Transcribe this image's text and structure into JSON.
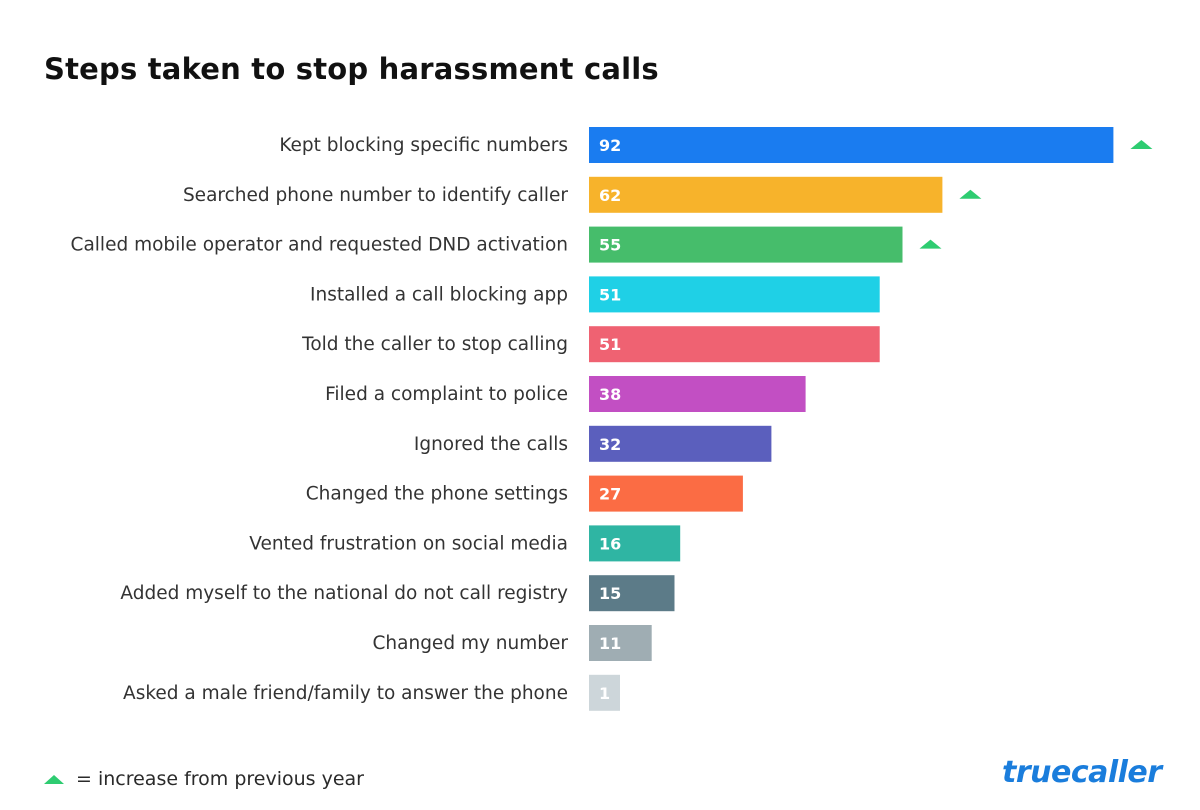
{
  "title": "Steps taken to stop harassment calls",
  "legend": {
    "text": "= increase from previous year",
    "marker_color": "#2ecc71"
  },
  "brand": "truecaller",
  "brand_color": "#1a7ddc",
  "chart_data": {
    "type": "bar",
    "orientation": "horizontal",
    "title": "Steps taken to stop harassment calls",
    "xlabel": "",
    "ylabel": "",
    "xlim": [
      0,
      100
    ],
    "grid": false,
    "categories": [
      "Kept blocking specific numbers",
      "Searched phone number to identify caller",
      "Called mobile operator and requested DND activation",
      "Installed a call blocking app",
      "Told the caller to stop calling",
      "Filed a complaint to police",
      "Ignored the calls",
      "Changed the phone settings",
      "Vented frustration on social media",
      "Added myself to the national do not call registry",
      "Changed my number",
      "Asked a male friend/family to answer the phone"
    ],
    "values": [
      92,
      62,
      55,
      51,
      51,
      38,
      32,
      27,
      16,
      15,
      11,
      1
    ],
    "colors": [
      "#1a7cf0",
      "#f7b32b",
      "#46bd6b",
      "#1fd0e6",
      "#ef6272",
      "#c24fc3",
      "#5b5fbd",
      "#fb6c44",
      "#2fb5a3",
      "#5c7b88",
      "#9fadb3",
      "#cdd6da"
    ],
    "increase_from_previous_year": [
      true,
      true,
      true,
      false,
      false,
      false,
      false,
      false,
      false,
      false,
      false,
      false
    ]
  }
}
